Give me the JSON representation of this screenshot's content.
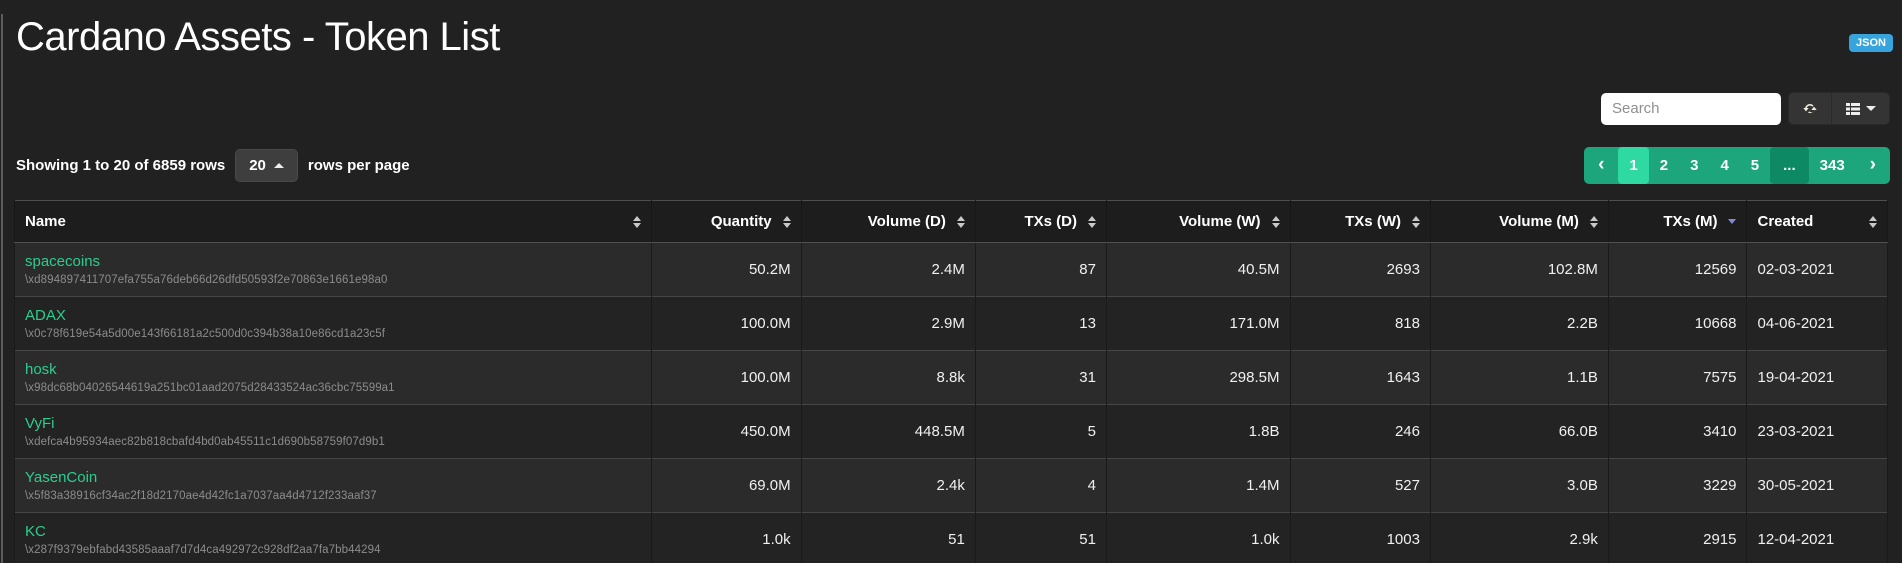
{
  "page": {
    "title": "Cardano Assets - Token List",
    "json_badge_label": "JSON"
  },
  "toolbar": {
    "search_placeholder": "Search"
  },
  "pagination": {
    "summary": "Showing 1 to 20 of 6859 rows",
    "page_size": "20",
    "rows_per_page_label": "rows per page",
    "prev_label": "‹",
    "next_label": "›",
    "pages": [
      "1",
      "2",
      "3",
      "4",
      "5",
      "...",
      "343"
    ],
    "active_page": "1"
  },
  "colors": {
    "accent_green": "#1da57b",
    "active_page_green": "#2edaa2",
    "ellipsis_green": "#0d8a63",
    "link_green": "#2bce8e",
    "badge_blue": "#37a4dd",
    "sorted_arrow_blue": "#828bda"
  },
  "table": {
    "columns": [
      {
        "label": "Name",
        "align": "left",
        "sort": "both"
      },
      {
        "label": "Quantity",
        "align": "right",
        "sort": "both"
      },
      {
        "label": "Volume (D)",
        "align": "right",
        "sort": "both"
      },
      {
        "label": "TXs (D)",
        "align": "right",
        "sort": "both"
      },
      {
        "label": "Volume (W)",
        "align": "right",
        "sort": "both"
      },
      {
        "label": "TXs (W)",
        "align": "right",
        "sort": "both"
      },
      {
        "label": "Volume (M)",
        "align": "right",
        "sort": "both"
      },
      {
        "label": "TXs (M)",
        "align": "right",
        "sort": "desc"
      },
      {
        "label": "Created",
        "align": "left",
        "sort": "both"
      }
    ],
    "rows": [
      {
        "name": "spacecoins",
        "hash": "\\xd894897411707efa755a76deb66d26dfd50593f2e70863e1661e98a0",
        "quantity": "50.2M",
        "volume_d": "2.4M",
        "txs_d": "87",
        "volume_w": "40.5M",
        "txs_w": "2693",
        "volume_m": "102.8M",
        "txs_m": "12569",
        "created": "02-03-2021"
      },
      {
        "name": "ADAX",
        "hash": "\\x0c78f619e54a5d00e143f66181a2c500d0c394b38a10e86cd1a23c5f",
        "quantity": "100.0M",
        "volume_d": "2.9M",
        "txs_d": "13",
        "volume_w": "171.0M",
        "txs_w": "818",
        "volume_m": "2.2B",
        "txs_m": "10668",
        "created": "04-06-2021"
      },
      {
        "name": "hosk",
        "hash": "\\x98dc68b04026544619a251bc01aad2075d28433524ac36cbc75599a1",
        "quantity": "100.0M",
        "volume_d": "8.8k",
        "txs_d": "31",
        "volume_w": "298.5M",
        "txs_w": "1643",
        "volume_m": "1.1B",
        "txs_m": "7575",
        "created": "19-04-2021"
      },
      {
        "name": "VyFi",
        "hash": "\\xdefca4b95934aec82b818cbafd4bd0ab45511c1d690b58759f07d9b1",
        "quantity": "450.0M",
        "volume_d": "448.5M",
        "txs_d": "5",
        "volume_w": "1.8B",
        "txs_w": "246",
        "volume_m": "66.0B",
        "txs_m": "3410",
        "created": "23-03-2021"
      },
      {
        "name": "YasenCoin",
        "hash": "\\x5f83a38916cf34ac2f18d2170ae4d42fc1a7037aa4d4712f233aaf37",
        "quantity": "69.0M",
        "volume_d": "2.4k",
        "txs_d": "4",
        "volume_w": "1.4M",
        "txs_w": "527",
        "volume_m": "3.0B",
        "txs_m": "3229",
        "created": "30-05-2021"
      },
      {
        "name": "KC",
        "hash": "\\x287f9379ebfabd43585aaaf7d7d4ca492972c928df2aa7fa7bb44294",
        "quantity": "1.0k",
        "volume_d": "51",
        "txs_d": "51",
        "volume_w": "1.0k",
        "txs_w": "1003",
        "volume_m": "2.9k",
        "txs_m": "2915",
        "created": "12-04-2021"
      }
    ]
  }
}
